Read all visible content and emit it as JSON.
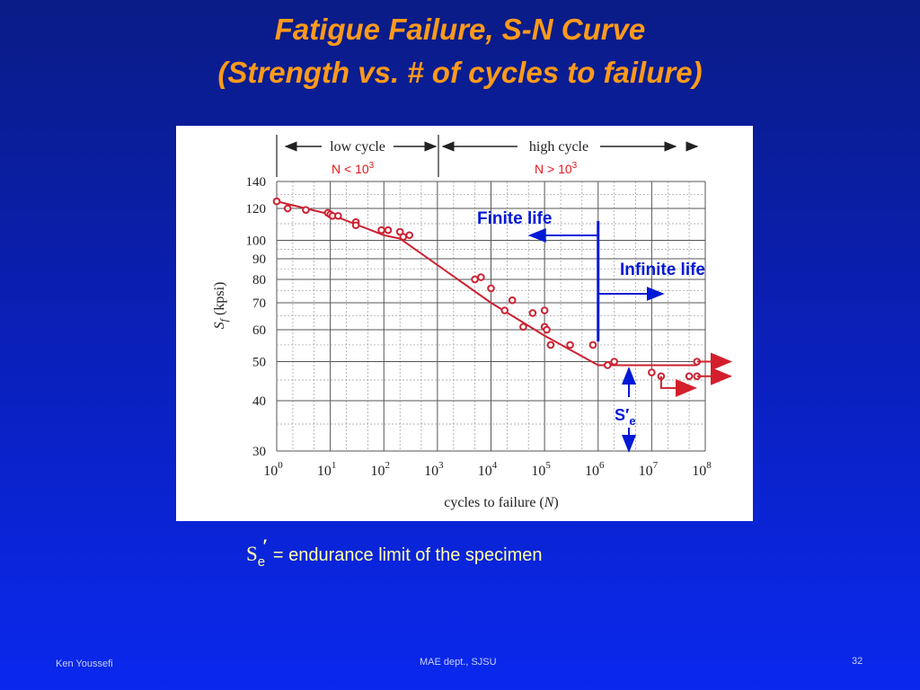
{
  "slide": {
    "title_line1": "Fatigue Failure, S-N Curve",
    "title_line2": "(Strength vs. # of cycles to failure)",
    "caption_symbol": "S",
    "caption_subscript": "e",
    "caption_prime": "′",
    "caption_text": " = endurance limit of the specimen",
    "footer_left": "Ken Youssefi",
    "footer_center": "MAE dept., SJSU",
    "page_number": "32"
  },
  "colors": {
    "background": "#0a22c8",
    "title": "#ff9a1a",
    "curve": "#cc2233",
    "annotation": "#0019d6",
    "regime_label": "#e4141e"
  },
  "chart_data": {
    "type": "scatter",
    "x_scale": "log",
    "x_ticks": [
      1,
      10,
      100,
      1000,
      10000,
      100000,
      1000000,
      10000000,
      100000000
    ],
    "x_tick_labels": [
      {
        "base": "10",
        "exp": "0"
      },
      {
        "base": "10",
        "exp": "1"
      },
      {
        "base": "10",
        "exp": "2"
      },
      {
        "base": "10",
        "exp": "3"
      },
      {
        "base": "10",
        "exp": "4"
      },
      {
        "base": "10",
        "exp": "5"
      },
      {
        "base": "10",
        "exp": "6"
      },
      {
        "base": "10",
        "exp": "7"
      },
      {
        "base": "10",
        "exp": "8"
      }
    ],
    "xlabel_main": "cycles to failure (",
    "xlabel_var": "N",
    "xlabel_close": ")",
    "y_scale": "log",
    "ylim": [
      30,
      140
    ],
    "y_ticks": [
      30,
      40,
      50,
      60,
      70,
      80,
      90,
      100,
      120,
      140
    ],
    "y_tick_labels": [
      "30",
      "40",
      "50",
      "60",
      "70",
      "80",
      "90",
      "100",
      "120",
      "140"
    ],
    "ylabel_var": "S",
    "ylabel_sub": "f",
    "ylabel_unit": "(kpsi)",
    "grid": true,
    "regimes": [
      {
        "label": "low cycle",
        "condition": "N < 10",
        "exp": "3",
        "x_range": [
          1,
          1000
        ]
      },
      {
        "label": "high cycle",
        "condition": "N > 10",
        "exp": "3",
        "x_range": [
          1000,
          100000000
        ]
      }
    ],
    "trend_line": [
      [
        1,
        125
      ],
      [
        10,
        116
      ],
      [
        100,
        103
      ],
      [
        200,
        101
      ],
      [
        10000,
        70
      ],
      [
        100000,
        58
      ],
      [
        1000000,
        49
      ],
      [
        70000000,
        49
      ]
    ],
    "points": [
      [
        1,
        125
      ],
      [
        1.6,
        120
      ],
      [
        3.5,
        119
      ],
      [
        9,
        117
      ],
      [
        10,
        116
      ],
      [
        11,
        115
      ],
      [
        14,
        115
      ],
      [
        30,
        111
      ],
      [
        30,
        109
      ],
      [
        90,
        106
      ],
      [
        120,
        106
      ],
      [
        200,
        105
      ],
      [
        230,
        102
      ],
      [
        300,
        103
      ],
      [
        5000,
        80
      ],
      [
        6500,
        81
      ],
      [
        10000,
        76
      ],
      [
        18000,
        67
      ],
      [
        25000,
        71
      ],
      [
        40000,
        61
      ],
      [
        60000,
        66
      ],
      [
        100000,
        61
      ],
      [
        100000,
        67
      ],
      [
        110000,
        60
      ],
      [
        130000,
        55
      ],
      [
        300000,
        55
      ],
      [
        800000,
        55
      ],
      [
        1500000,
        49
      ],
      [
        2000000,
        50
      ],
      [
        10000000,
        47
      ],
      [
        15000000,
        46
      ],
      [
        50000000,
        46
      ],
      [
        70000000,
        50
      ],
      [
        70000000,
        46
      ]
    ],
    "runouts": [
      [
        70000000,
        50
      ],
      [
        70000000,
        46
      ],
      [
        15000000,
        43
      ]
    ],
    "annotations": {
      "finite_life": "Finite life",
      "infinite_life": "Infinite life",
      "endurance_symbol": "S′",
      "endurance_sub": "e",
      "boundary_cycles": 1000000
    }
  }
}
